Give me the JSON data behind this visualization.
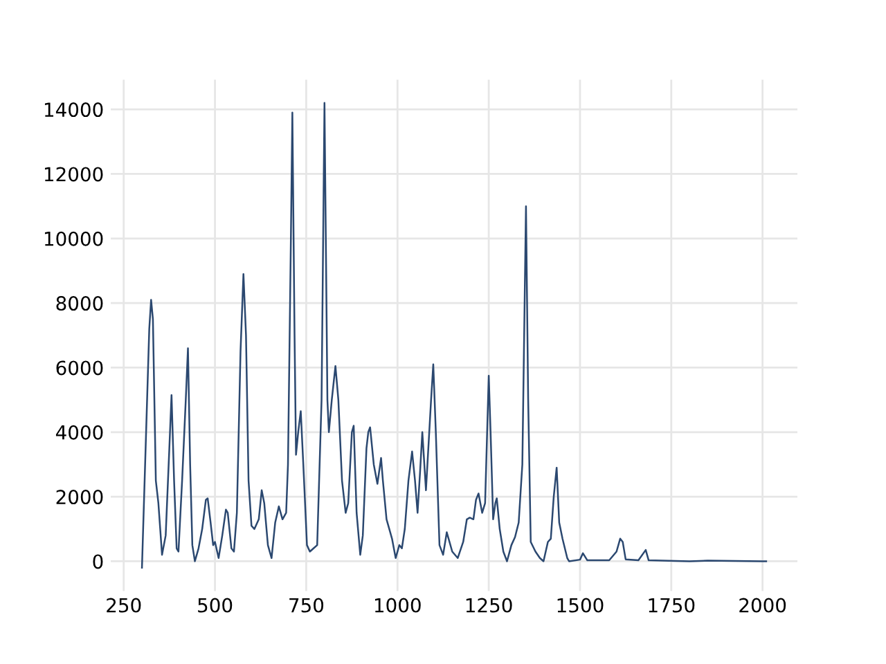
{
  "chart_data": {
    "type": "line",
    "x": [
      300,
      310,
      320,
      325,
      330,
      338,
      345,
      355,
      365,
      375,
      381,
      388,
      395,
      400,
      410,
      420,
      426,
      432,
      438,
      445,
      455,
      465,
      475,
      480,
      488,
      495,
      500,
      510,
      520,
      530,
      535,
      545,
      552,
      560,
      570,
      578,
      585,
      592,
      600,
      608,
      620,
      628,
      635,
      645,
      655,
      665,
      675,
      685,
      695,
      700,
      708,
      712,
      718,
      722,
      728,
      735,
      742,
      752,
      760,
      770,
      780,
      792,
      800,
      808,
      812,
      820,
      830,
      838,
      848,
      858,
      865,
      875,
      880,
      888,
      898,
      905,
      915,
      920,
      925,
      935,
      945,
      955,
      960,
      970,
      985,
      995,
      1005,
      1012,
      1020,
      1030,
      1040,
      1048,
      1055,
      1062,
      1068,
      1078,
      1092,
      1098,
      1105,
      1115,
      1125,
      1135,
      1140,
      1150,
      1165,
      1180,
      1190,
      1198,
      1208,
      1215,
      1222,
      1232,
      1240,
      1250,
      1255,
      1262,
      1268,
      1272,
      1280,
      1290,
      1300,
      1312,
      1322,
      1332,
      1342,
      1352,
      1358,
      1365,
      1378,
      1390,
      1400,
      1412,
      1420,
      1428,
      1436,
      1443,
      1452,
      1465,
      1470,
      1500,
      1508,
      1520,
      1580,
      1600,
      1610,
      1617,
      1625,
      1660,
      1680,
      1688,
      1800,
      1850,
      2000,
      2010
    ],
    "series": [
      {
        "color": "#2b4870",
        "values": [
          -200,
          3500,
          7200,
          8100,
          7500,
          2500,
          1800,
          200,
          800,
          3500,
          5150,
          2500,
          400,
          300,
          2500,
          5000,
          6600,
          3000,
          500,
          0,
          400,
          1000,
          1900,
          1950,
          1200,
          500,
          600,
          100,
          800,
          1600,
          1500,
          400,
          300,
          1500,
          6500,
          8900,
          7000,
          2500,
          1100,
          1000,
          1300,
          2200,
          1800,
          500,
          100,
          1200,
          1700,
          1300,
          1500,
          3000,
          10000,
          13900,
          7000,
          3300,
          4000,
          4650,
          3000,
          500,
          300,
          400,
          500,
          5000,
          14200,
          5000,
          4000,
          5000,
          6050,
          5000,
          2500,
          1500,
          1800,
          4000,
          4200,
          1500,
          200,
          800,
          3500,
          4000,
          4150,
          3000,
          2400,
          3200,
          2500,
          1300,
          700,
          100,
          500,
          400,
          1000,
          2500,
          3400,
          2500,
          1500,
          2800,
          4000,
          2200,
          5000,
          6100,
          4000,
          500,
          200,
          900,
          700,
          300,
          100,
          600,
          1300,
          1350,
          1300,
          1900,
          2100,
          1500,
          1800,
          5750,
          4000,
          1300,
          1800,
          1950,
          1000,
          300,
          0,
          500,
          750,
          1200,
          3000,
          11000,
          5000,
          600,
          300,
          100,
          0,
          600,
          700,
          2000,
          2900,
          1200,
          700,
          100,
          0,
          50,
          250,
          30,
          30,
          300,
          700,
          600,
          60,
          30,
          350,
          30,
          0,
          20,
          0,
          0
        ]
      }
    ],
    "xlim": [
      214.5,
      2095.5
    ],
    "ylim": [
      -920,
      14920
    ],
    "xticks": [
      250,
      500,
      750,
      1000,
      1250,
      1500,
      1750,
      2000
    ],
    "yticks": [
      0,
      2000,
      4000,
      6000,
      8000,
      10000,
      12000,
      14000
    ],
    "grid": true,
    "legend": false
  }
}
